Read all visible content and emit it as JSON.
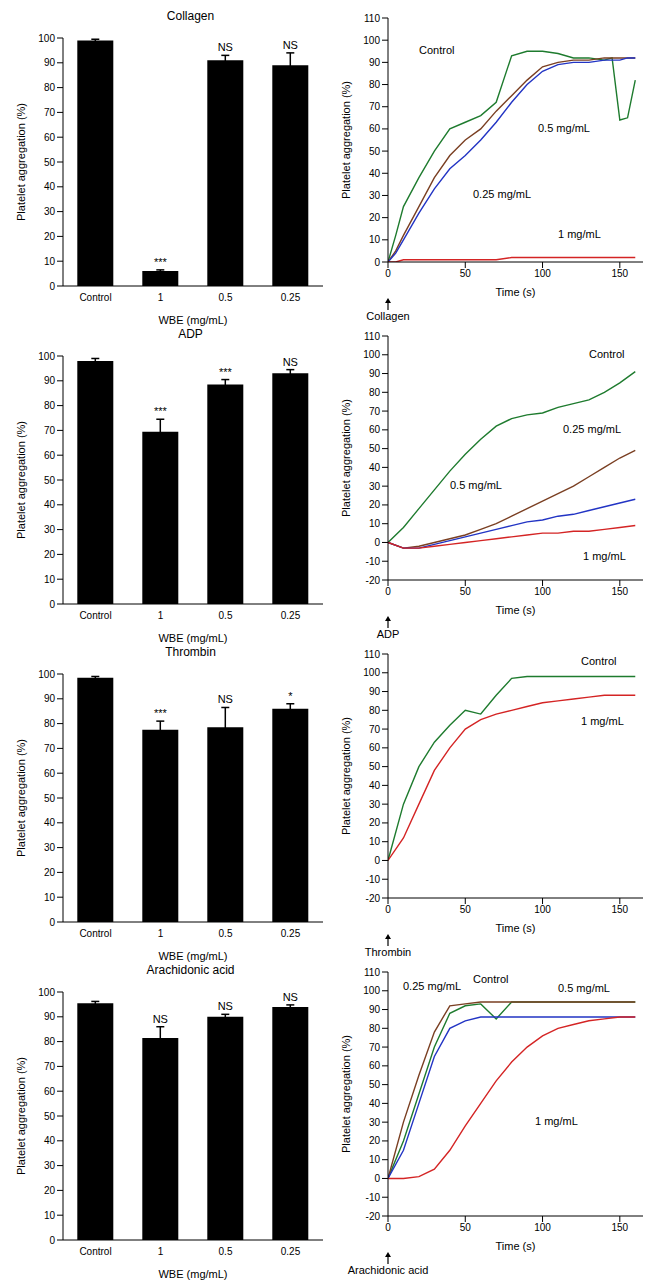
{
  "chart_data": [
    {
      "type": "bar",
      "title": "Collagen",
      "x_label": "WBE (mg/mL)",
      "y_label": "Platelet aggregation (%)",
      "categories": [
        "Control",
        "1",
        "0.5",
        "0.25"
      ],
      "values": [
        99,
        6,
        91,
        89
      ],
      "errors": [
        0.5,
        0.5,
        2,
        5
      ],
      "annotations": [
        null,
        "***",
        "NS",
        "NS"
      ],
      "color": "#000000",
      "ylim": [
        0,
        100
      ],
      "yticks": [
        0,
        10,
        20,
        30,
        40,
        50,
        60,
        70,
        80,
        90,
        100
      ],
      "grid": false
    },
    {
      "type": "line",
      "x_label": "Time (s)",
      "y_label": "Platelet aggregation (%)",
      "annotations": [
        {
          "text": "Collagen",
          "x": 0
        }
      ],
      "x": [
        0,
        5,
        10,
        20,
        30,
        40,
        50,
        60,
        70,
        80,
        90,
        100,
        110,
        120,
        130,
        140,
        145,
        150,
        155,
        160
      ],
      "series": [
        {
          "name": "Control",
          "color": "#1e7b2e",
          "values": [
            0,
            12,
            25,
            38,
            50,
            60,
            63,
            66,
            72,
            93,
            95,
            95,
            94,
            92,
            92,
            91,
            92,
            64,
            65,
            82
          ]
        },
        {
          "name": "0.25 mg/mL",
          "color": "#7a3f22",
          "values": [
            0,
            5,
            12,
            25,
            38,
            48,
            55,
            60,
            68,
            75,
            82,
            88,
            90,
            91,
            91,
            92,
            92,
            92,
            92,
            92
          ]
        },
        {
          "name": "0.5 mg/mL",
          "color": "#2234c4",
          "values": [
            0,
            4,
            10,
            22,
            33,
            42,
            48,
            55,
            63,
            72,
            80,
            86,
            89,
            90,
            90,
            91,
            91,
            91,
            92,
            92
          ]
        },
        {
          "name": "1 mg/mL",
          "color": "#d42424",
          "values": [
            0,
            0,
            1,
            1,
            1,
            1,
            1,
            1,
            1,
            2,
            2,
            2,
            2,
            2,
            2,
            2,
            2,
            2,
            2,
            2
          ]
        }
      ],
      "xlim": [
        0,
        165
      ],
      "xticks": [
        0,
        50,
        100,
        150
      ],
      "ylim": [
        0,
        110
      ],
      "yticks": [
        0,
        10,
        20,
        30,
        40,
        50,
        60,
        70,
        80,
        90,
        100,
        110
      ],
      "grid": false
    },
    {
      "type": "bar",
      "title": "ADP",
      "x_label": "WBE (mg/mL)",
      "y_label": "Platelet aggregation (%)",
      "categories": [
        "Control",
        "1",
        "0.5",
        "0.25"
      ],
      "values": [
        98,
        69.5,
        88.5,
        93
      ],
      "errors": [
        1,
        5,
        2,
        1.5
      ],
      "annotations": [
        null,
        "***",
        "***",
        "NS"
      ],
      "color": "#000000",
      "ylim": [
        0,
        100
      ],
      "yticks": [
        0,
        10,
        20,
        30,
        40,
        50,
        60,
        70,
        80,
        90,
        100
      ],
      "grid": false
    },
    {
      "type": "line",
      "x_label": "Time (s)",
      "y_label": "Platelet aggregation (%)",
      "annotations": [
        {
          "text": "ADP",
          "x": 0
        }
      ],
      "x": [
        0,
        10,
        20,
        30,
        40,
        50,
        60,
        70,
        80,
        90,
        100,
        110,
        120,
        130,
        140,
        150,
        160
      ],
      "series": [
        {
          "name": "Control",
          "color": "#1e7b2e",
          "values": [
            0,
            8,
            18,
            28,
            38,
            47,
            55,
            62,
            66,
            68,
            69,
            72,
            74,
            76,
            80,
            85,
            91
          ]
        },
        {
          "name": "0.25 mg/mL",
          "color": "#7a3f22",
          "values": [
            0,
            -3,
            -2,
            0,
            2,
            4,
            7,
            10,
            14,
            18,
            22,
            26,
            30,
            35,
            40,
            45,
            49
          ]
        },
        {
          "name": "0.5 mg/mL",
          "color": "#2234c4",
          "values": [
            0,
            -3,
            -3,
            -1,
            1,
            3,
            5,
            7,
            9,
            11,
            12,
            14,
            15,
            17,
            19,
            21,
            23
          ]
        },
        {
          "name": "1 mg/mL",
          "color": "#d42424",
          "values": [
            0,
            -3,
            -3,
            -2,
            -1,
            0,
            1,
            2,
            3,
            4,
            5,
            5,
            6,
            6,
            7,
            8,
            9
          ]
        }
      ],
      "xlim": [
        0,
        165
      ],
      "xticks": [
        0,
        50,
        100,
        150
      ],
      "ylim": [
        -20,
        110
      ],
      "yticks": [
        -20,
        -10,
        0,
        10,
        20,
        30,
        40,
        50,
        60,
        70,
        80,
        90,
        100,
        110
      ],
      "grid": false
    },
    {
      "type": "bar",
      "title": "Thrombin",
      "x_label": "WBE (mg/mL)",
      "y_label": "Platelet aggregation (%)",
      "categories": [
        "Control",
        "1",
        "0.5",
        "0.25"
      ],
      "values": [
        98.5,
        77.5,
        78.5,
        86
      ],
      "errors": [
        0.5,
        3.5,
        8,
        2
      ],
      "annotations": [
        null,
        "***",
        "NS",
        "*"
      ],
      "color": "#000000",
      "ylim": [
        0,
        100
      ],
      "yticks": [
        0,
        10,
        20,
        30,
        40,
        50,
        60,
        70,
        80,
        90,
        100
      ],
      "grid": false
    },
    {
      "type": "line",
      "x_label": "Time (s)",
      "y_label": "Platelet aggregation (%)",
      "annotations": [
        {
          "text": "Thrombin",
          "x": 0
        }
      ],
      "x": [
        0,
        10,
        20,
        30,
        40,
        50,
        60,
        70,
        80,
        90,
        100,
        110,
        120,
        130,
        140,
        150,
        160
      ],
      "series": [
        {
          "name": "Control",
          "color": "#1e7b2e",
          "values": [
            0,
            30,
            50,
            63,
            72,
            80,
            78,
            88,
            97,
            98,
            98,
            98,
            98,
            98,
            98,
            98,
            98
          ]
        },
        {
          "name": "1 mg/mL",
          "color": "#d42424",
          "values": [
            0,
            12,
            30,
            48,
            60,
            70,
            75,
            78,
            80,
            82,
            84,
            85,
            86,
            87,
            88,
            88,
            88
          ]
        }
      ],
      "xlim": [
        0,
        165
      ],
      "xticks": [
        0,
        50,
        100,
        150
      ],
      "ylim": [
        -20,
        110
      ],
      "yticks": [
        -20,
        -10,
        0,
        10,
        20,
        30,
        40,
        50,
        60,
        70,
        80,
        90,
        100,
        110
      ],
      "grid": false
    },
    {
      "type": "bar",
      "title": "Arachidonic acid",
      "x_label": "WBE (mg/mL)",
      "y_label": "Platelet aggregation (%)",
      "categories": [
        "Control",
        "1",
        "0.5",
        "0.25"
      ],
      "values": [
        95.5,
        81.5,
        90,
        94
      ],
      "errors": [
        0.7,
        4.5,
        1,
        0.8
      ],
      "annotations": [
        null,
        "NS",
        "NS",
        "NS"
      ],
      "color": "#000000",
      "ylim": [
        0,
        100
      ],
      "yticks": [
        0,
        10,
        20,
        30,
        40,
        50,
        60,
        70,
        80,
        90,
        100
      ],
      "grid": false
    },
    {
      "type": "line",
      "x_label": "Time (s)",
      "y_label": "Platelet aggregation (%)",
      "annotations": [
        {
          "text": "Arachidonic acid",
          "x": 0
        }
      ],
      "x": [
        0,
        10,
        20,
        30,
        40,
        50,
        60,
        70,
        80,
        90,
        100,
        110,
        120,
        130,
        140,
        150,
        160
      ],
      "series": [
        {
          "name": "Control",
          "color": "#1e7b2e",
          "values": [
            0,
            20,
            45,
            70,
            88,
            92,
            93,
            85,
            94,
            94,
            94,
            94,
            94,
            94,
            94,
            94,
            94
          ]
        },
        {
          "name": "0.25 mg/mL",
          "color": "#7a3f22",
          "values": [
            0,
            30,
            55,
            78,
            92,
            93,
            94,
            94,
            94,
            94,
            94,
            94,
            94,
            94,
            94,
            94,
            94
          ]
        },
        {
          "name": "0.5 mg/mL",
          "color": "#2234c4",
          "values": [
            0,
            15,
            40,
            65,
            80,
            84,
            86,
            86,
            86,
            86,
            86,
            86,
            86,
            86,
            86,
            86,
            86
          ]
        },
        {
          "name": "1 mg/mL",
          "color": "#d42424",
          "values": [
            0,
            0,
            1,
            5,
            15,
            28,
            40,
            52,
            62,
            70,
            76,
            80,
            82,
            84,
            85,
            86,
            86
          ]
        }
      ],
      "xlim": [
        0,
        165
      ],
      "xticks": [
        0,
        50,
        100,
        150
      ],
      "ylim": [
        -20,
        110
      ],
      "yticks": [
        -20,
        -10,
        0,
        10,
        20,
        30,
        40,
        50,
        60,
        70,
        80,
        90,
        100,
        110
      ],
      "grid": false
    }
  ]
}
